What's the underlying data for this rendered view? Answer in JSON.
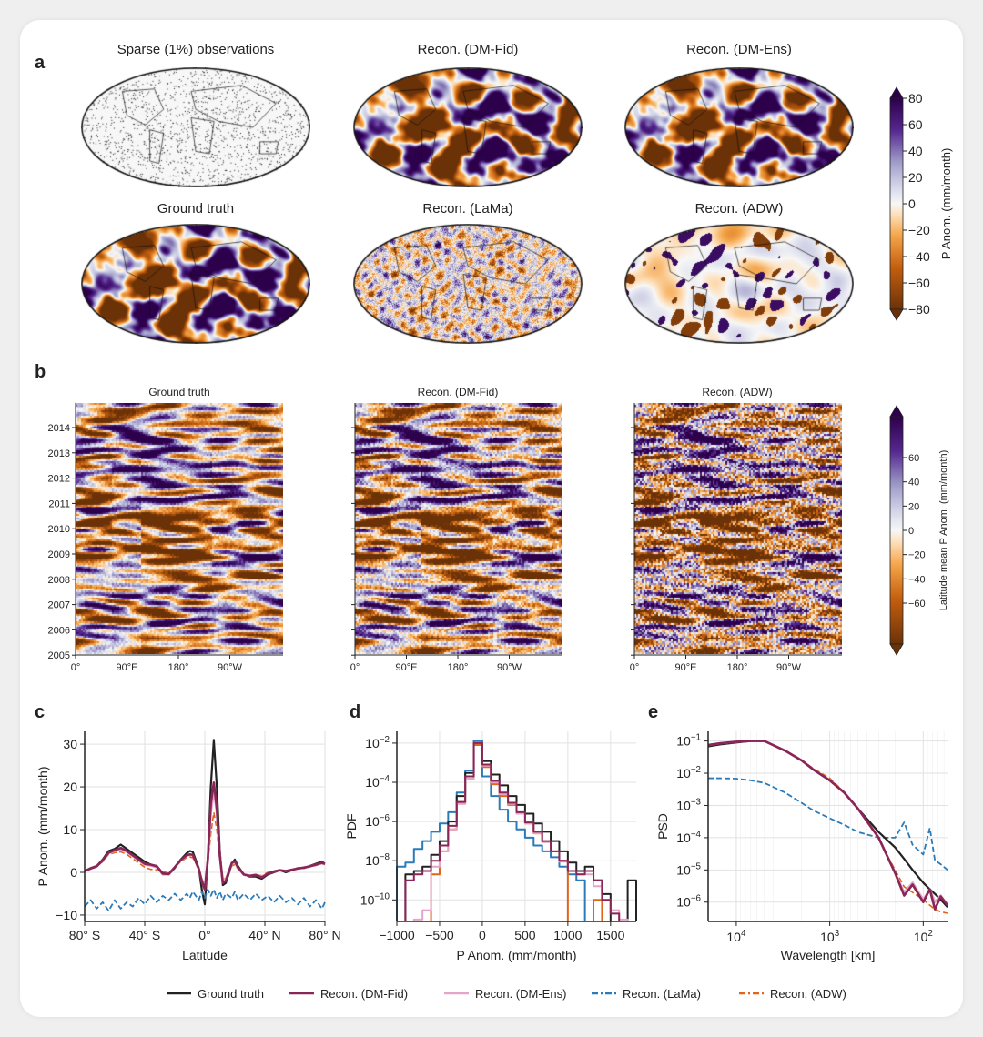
{
  "panel_labels": {
    "a": "a",
    "b": "b",
    "c": "c",
    "d": "d",
    "e": "e"
  },
  "panel_a": {
    "titles": [
      "Sparse (1%) observations",
      "Recon. (DM-Fid)",
      "Recon. (DM-Ens)",
      "Ground truth",
      "Recon. (LaMa)",
      "Recon. (ADW)"
    ],
    "colorbar": {
      "label": "P Anom. (mm/month)",
      "ticks": [
        "80",
        "60",
        "40",
        "20",
        "0",
        "−20",
        "−40",
        "−60",
        "−80"
      ],
      "range": [
        -80,
        80
      ],
      "extend": "both"
    }
  },
  "panel_b": {
    "titles": [
      "Ground truth",
      "Recon. (DM-Fid)",
      "Recon.  (ADW)"
    ],
    "y_ticks": [
      "2014",
      "2013",
      "2012",
      "2011",
      "2010",
      "2009",
      "2008",
      "2007",
      "2006",
      "2005"
    ],
    "x_ticks": [
      "0°",
      "90°E",
      "180°",
      "90°W"
    ],
    "colorbar": {
      "label": "Latitude mean P Anom. (mm/month)",
      "ticks": [
        "60",
        "40",
        "20",
        "0",
        "−20",
        "−40",
        "−60"
      ],
      "range": [
        -70,
        70
      ],
      "extend": "both"
    }
  },
  "colors": {
    "ground_truth": "#222222",
    "dm_fid": "#8a2557",
    "dm_ens": "#e3a6c9",
    "lama": "#2b7bba",
    "adw": "#e0651b",
    "cmap_neg": "#7f3b08",
    "cmap_pos": "#2d004b"
  },
  "legend": [
    {
      "label": "Ground truth",
      "color": "#222222",
      "dash": "solid"
    },
    {
      "label": "Recon. (DM-Fid)",
      "color": "#8a2557",
      "dash": "solid"
    },
    {
      "label": "Recon. (DM-Ens)",
      "color": "#e3a6c9",
      "dash": "solid"
    },
    {
      "label": "Recon. (LaMa)",
      "color": "#2b7bba",
      "dash": "dashed"
    },
    {
      "label": "Recon. (ADW)",
      "color": "#e0651b",
      "dash": "dashed"
    }
  ],
  "chart_data": [
    {
      "id": "c",
      "type": "line",
      "xlabel": "Latitude",
      "ylabel": "P Anom. (mm/month)",
      "xlim": [
        -80,
        80
      ],
      "ylim": [
        -11.5,
        33
      ],
      "grid": true,
      "x_ticks": [
        {
          "v": -80,
          "label": "80° S"
        },
        {
          "v": -40,
          "label": "40° S"
        },
        {
          "v": 0,
          "label": "0°"
        },
        {
          "v": 40,
          "label": "40° N"
        },
        {
          "v": 80,
          "label": "80° N"
        }
      ],
      "y_ticks": [
        {
          "v": -10,
          "label": "−10"
        },
        {
          "v": 0,
          "label": "0"
        },
        {
          "v": 10,
          "label": "10"
        },
        {
          "v": 20,
          "label": "20"
        },
        {
          "v": 30,
          "label": "30"
        }
      ],
      "x": [
        -80,
        -76,
        -72,
        -68,
        -64,
        -60,
        -56,
        -52,
        -48,
        -44,
        -40,
        -36,
        -32,
        -28,
        -24,
        -20,
        -16,
        -12,
        -10,
        -8,
        -4,
        -2,
        0,
        2,
        4,
        6,
        8,
        10,
        12,
        14,
        18,
        20,
        22,
        26,
        30,
        34,
        38,
        42,
        46,
        50,
        54,
        58,
        62,
        66,
        70,
        74,
        78,
        80
      ],
      "series": [
        {
          "name": "Recon. (ADW)",
          "values": [
            0.3,
            0.8,
            1.3,
            2.5,
            4.2,
            4.6,
            4.8,
            4.2,
            3.2,
            2.2,
            1.2,
            0.7,
            0.6,
            0.2,
            -0.2,
            1.2,
            2.5,
            3.5,
            3.6,
            3.4,
            0.8,
            -1.5,
            -3,
            2,
            9,
            14,
            10,
            3,
            -1.5,
            -1.5,
            1.5,
            1.8,
            0.8,
            -0.5,
            -0.8,
            -0.5,
            -0.8,
            0,
            0.2,
            0.4,
            0.2,
            0.6,
            0.8,
            1,
            1.3,
            1.6,
            2,
            1.8
          ],
          "dash": "dashed"
        },
        {
          "name": "Ground truth",
          "values": [
            0.3,
            1,
            1.5,
            3,
            5,
            5.5,
            6.5,
            5.5,
            4.5,
            3.5,
            2.5,
            1.8,
            1.5,
            -0.2,
            -0.5,
            1,
            3,
            4.5,
            5,
            4.8,
            1,
            -4,
            -7.5,
            3,
            20,
            31,
            20,
            5,
            -3,
            -2.5,
            2,
            3,
            1.5,
            -0.5,
            -1,
            -1,
            -1.5,
            -0.5,
            0,
            0.5,
            0,
            0.5,
            1,
            1,
            1.5,
            2,
            2.5,
            2
          ]
        },
        {
          "name": "Recon. (DM-Ens)",
          "values": [
            0.3,
            0.9,
            1.4,
            2.8,
            4.5,
            5,
            5.4,
            4.8,
            3.8,
            2.8,
            1.8,
            1.6,
            1.2,
            -0.5,
            -0.5,
            1.2,
            2.8,
            3.9,
            4.1,
            4,
            0.8,
            -2,
            -4,
            2.5,
            14,
            19,
            14,
            4,
            -2,
            -1.5,
            2,
            2.4,
            1,
            -0.6,
            -0.8,
            -0.6,
            -1,
            -0.3,
            0.2,
            0.5,
            0.3,
            0.6,
            0.9,
            1.1,
            1.4,
            1.8,
            2.1,
            1.9
          ]
        },
        {
          "name": "Recon. (DM-Fid)",
          "values": [
            0.3,
            0.9,
            1.4,
            2.8,
            4.6,
            5.2,
            5.7,
            5,
            4,
            3,
            2,
            1.8,
            1.4,
            -0.3,
            -0.4,
            1.2,
            2.9,
            4,
            4.2,
            4.1,
            0.8,
            -2,
            -4,
            3,
            16,
            21,
            15,
            4,
            -2.5,
            -2,
            2.2,
            2.6,
            1.2,
            -0.5,
            -0.8,
            -0.6,
            -1.2,
            -0.3,
            0.2,
            0.5,
            0.3,
            0.6,
            0.9,
            1.1,
            1.4,
            1.8,
            2.2,
            2
          ]
        },
        {
          "name": "Recon. (LaMa)",
          "values": [
            -8,
            -6.5,
            -8.5,
            -7,
            -9,
            -6.5,
            -8.5,
            -7,
            -8,
            -6,
            -7.5,
            -5.5,
            -7,
            -5.5,
            -6.5,
            -5,
            -6.5,
            -5,
            -6,
            -4.5,
            -6.5,
            -4.5,
            -6,
            -4,
            -5.5,
            -4,
            -6,
            -4.5,
            -6.5,
            -5,
            -6,
            -4.5,
            -6.5,
            -5,
            -6.5,
            -5,
            -6.5,
            -5.5,
            -7,
            -5.5,
            -7,
            -6,
            -7.5,
            -6,
            -8,
            -6.5,
            -8.5,
            -7
          ],
          "dash": "dashed"
        }
      ]
    },
    {
      "id": "d",
      "type": "line",
      "step": true,
      "yscale": "log",
      "xlabel": "P Anom. (mm/month)",
      "ylabel": "PDF",
      "xlim": [
        -1000,
        1800
      ],
      "ylim_log10": [
        -11.1,
        -1.4
      ],
      "grid": true,
      "x_ticks": [
        {
          "v": -1000,
          "label": "−1000"
        },
        {
          "v": -500,
          "label": "−500"
        },
        {
          "v": 0,
          "label": "0"
        },
        {
          "v": 500,
          "label": "500"
        },
        {
          "v": 1000,
          "label": "1000"
        },
        {
          "v": 1500,
          "label": "1500"
        }
      ],
      "y_ticks": [
        {
          "v": -2,
          "label": "10",
          "sup": "−2"
        },
        {
          "v": -4,
          "label": "10",
          "sup": "−4"
        },
        {
          "v": -6,
          "label": "10",
          "sup": "−6"
        },
        {
          "v": -8,
          "label": "10",
          "sup": "−8"
        },
        {
          "v": -10,
          "label": "10",
          "sup": "−10"
        }
      ],
      "x": [
        -950,
        -850,
        -750,
        -650,
        -550,
        -450,
        -350,
        -250,
        -150,
        -50,
        50,
        150,
        250,
        350,
        450,
        550,
        650,
        750,
        850,
        950,
        1050,
        1150,
        1250,
        1350,
        1450,
        1550,
        1650,
        1750
      ],
      "series": [
        {
          "name": "Recon. (LaMa)",
          "values": [
            5e-09,
            8e-09,
            4e-08,
            1e-07,
            3e-07,
            8e-07,
            3e-06,
            3e-05,
            0.0004,
            0.013,
            0.0002,
            2e-05,
            4e-06,
            1e-06,
            4e-07,
            1.5e-07,
            6e-08,
            3e-08,
            1.5e-08,
            5e-09,
            2e-09,
            1e-09,
            null,
            null,
            null,
            null,
            null,
            null
          ]
        },
        {
          "name": "Recon. (ADW)",
          "values": [
            null,
            null,
            null,
            null,
            2e-09,
            3e-08,
            4e-07,
            8e-06,
            0.00015,
            0.008,
            0.0006,
            8e-05,
            2e-05,
            7e-06,
            2.5e-06,
            8e-07,
            2.5e-07,
            9e-08,
            3e-08,
            1e-08,
            null,
            null,
            null,
            1e-10,
            null,
            null,
            null,
            null
          ]
        },
        {
          "name": "Ground truth",
          "values": [
            null,
            2e-09,
            3e-09,
            5e-09,
            2e-08,
            1e-07,
            1e-06,
            2e-05,
            0.0003,
            0.01,
            0.0012,
            0.00025,
            7e-05,
            2e-05,
            7e-06,
            2.5e-06,
            8e-07,
            3e-07,
            1e-07,
            3e-08,
            8e-09,
            3e-09,
            5e-09,
            1e-09,
            2e-10,
            null,
            null,
            1e-09
          ]
        },
        {
          "name": "Recon. (DM-Ens)",
          "values": [
            null,
            null,
            1e-11,
            3e-11,
            5e-09,
            3e-08,
            4e-07,
            8e-06,
            0.00015,
            0.01,
            0.0007,
            0.0001,
            2.5e-05,
            8e-06,
            2.5e-06,
            8e-07,
            2.5e-07,
            9e-08,
            3e-08,
            9e-09,
            3e-09,
            2e-09,
            2e-09,
            5e-10,
            1e-10,
            3e-11,
            1e-11,
            null
          ]
        },
        {
          "name": "Recon. (DM-Fid)",
          "values": [
            null,
            1e-09,
            2e-09,
            3e-09,
            1e-08,
            6e-08,
            6e-07,
            1e-05,
            0.0002,
            0.01,
            0.0008,
            0.00012,
            3e-05,
            9e-06,
            3e-06,
            9e-07,
            3e-07,
            1e-07,
            3e-08,
            1e-08,
            3e-09,
            2e-09,
            3e-09,
            1e-09,
            1e-10,
            2e-11,
            null,
            null
          ]
        }
      ]
    },
    {
      "id": "e",
      "type": "line",
      "xscale": "log",
      "yscale": "log",
      "x_reversed": true,
      "xlabel": "Wavelength [km]",
      "ylabel": "PSD",
      "xlim": [
        20000,
        55
      ],
      "ylim_log10": [
        -6.6,
        -0.7
      ],
      "grid": true,
      "x_ticks": [
        {
          "v": 10000,
          "label": "10",
          "sup": "4"
        },
        {
          "v": 1000,
          "label": "10",
          "sup": "3"
        },
        {
          "v": 100,
          "label": "10",
          "sup": "2"
        }
      ],
      "y_ticks": [
        {
          "v": -1,
          "label": "10",
          "sup": "−1"
        },
        {
          "v": -2,
          "label": "10",
          "sup": "−2"
        },
        {
          "v": -3,
          "label": "10",
          "sup": "−3"
        },
        {
          "v": -4,
          "label": "10",
          "sup": "−4"
        },
        {
          "v": -5,
          "label": "10",
          "sup": "−5"
        },
        {
          "v": -6,
          "label": "10",
          "sup": "−6"
        }
      ],
      "x": [
        20000,
        15000,
        10000,
        7000,
        5000,
        3000,
        2000,
        1500,
        1000,
        700,
        500,
        300,
        200,
        160,
        130,
        100,
        85,
        75,
        65,
        55
      ],
      "series": [
        {
          "name": "Recon. (LaMa)",
          "values": [
            0.007,
            0.007,
            0.0068,
            0.006,
            0.005,
            0.0025,
            0.0012,
            0.0007,
            0.0004,
            0.00025,
            0.00015,
            0.0001,
            0.0001,
            0.0003,
            6e-05,
            3e-05,
            0.0002,
            2e-05,
            1.5e-05,
            1e-05
          ],
          "dash": "dashed"
        },
        {
          "name": "Recon. (ADW)",
          "values": [
            0.075,
            0.085,
            0.095,
            0.1,
            0.1,
            0.05,
            0.026,
            0.014,
            0.007,
            0.0026,
            0.0008,
            9e-05,
            1e-05,
            3e-06,
            2e-06,
            1.2e-06,
            8e-07,
            6e-07,
            5e-07,
            4.5e-07
          ],
          "dash": "dashed"
        },
        {
          "name": "Ground truth",
          "values": [
            0.068,
            0.078,
            0.09,
            0.1,
            0.1,
            0.05,
            0.025,
            0.013,
            0.006,
            0.0025,
            0.0008,
            0.00015,
            5e-05,
            2.2e-05,
            1e-05,
            4e-06,
            2.5e-06,
            1.8e-06,
            1.2e-06,
            7e-07
          ]
        },
        {
          "name": "Recon. (DM-Ens)",
          "values": [
            0.075,
            0.085,
            0.095,
            0.1,
            0.1,
            0.05,
            0.025,
            0.013,
            0.006,
            0.0025,
            0.0008,
            0.0001,
            8e-06,
            2e-06,
            4e-06,
            1.2e-06,
            2.5e-06,
            1e-06,
            1.6e-06,
            8e-07
          ]
        },
        {
          "name": "Recon. (DM-Fid)",
          "values": [
            0.075,
            0.085,
            0.095,
            0.1,
            0.1,
            0.05,
            0.025,
            0.013,
            0.006,
            0.0025,
            0.0008,
            0.0001,
            8e-06,
            1.6e-06,
            3.5e-06,
            1e-06,
            2.5e-06,
            6e-07,
            1.5e-06,
            8e-07
          ]
        }
      ]
    }
  ]
}
